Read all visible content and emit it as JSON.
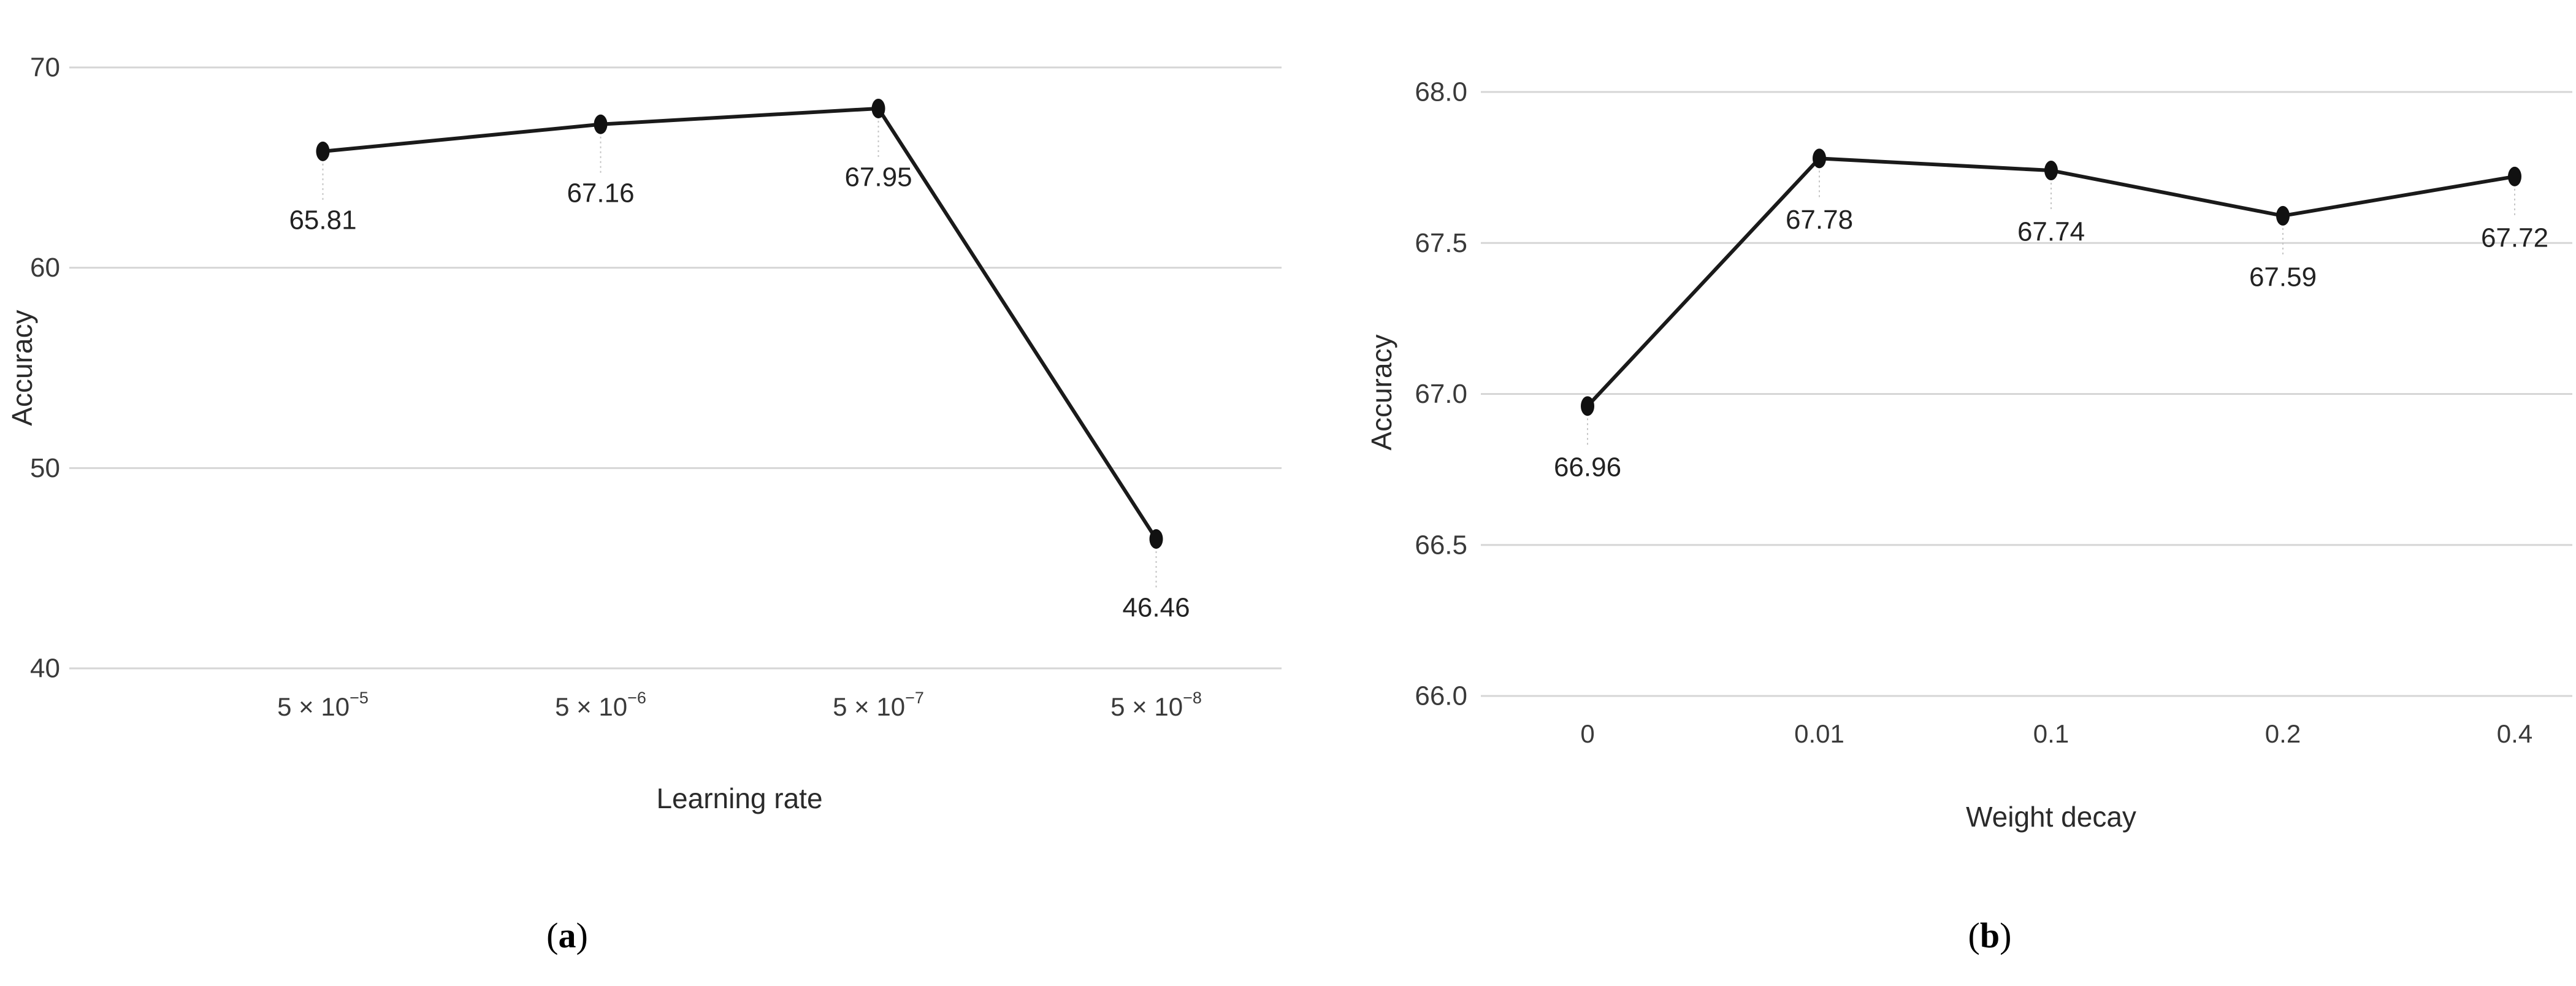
{
  "figure": {
    "description": "Two-panel line figure showing model accuracy versus hyperparameter settings",
    "background": "#ffffff"
  },
  "chart_data": [
    {
      "type": "line",
      "panel": "a",
      "title": "",
      "xlabel": "Learning rate",
      "ylabel": "Accuracy",
      "categories": [
        "5 × 10^−5",
        "5 × 10^−6",
        "5 × 10^−7",
        "5 × 10^−8"
      ],
      "values": [
        65.81,
        67.16,
        67.95,
        46.46
      ],
      "point_labels": [
        "65.81",
        "67.16",
        "67.95",
        "46.46"
      ],
      "y_ticks": [
        70,
        60,
        50,
        40
      ],
      "y_tick_labels": [
        "70",
        "60",
        "50",
        "40"
      ],
      "ylim": [
        40,
        70
      ],
      "grid": "horizontal-only",
      "legend": "none",
      "marker": "filled-dot"
    },
    {
      "type": "line",
      "panel": "b",
      "title": "",
      "xlabel": "Weight decay",
      "ylabel": "Accuracy",
      "categories": [
        "0",
        "0.01",
        "0.1",
        "0.2",
        "0.4"
      ],
      "values": [
        66.96,
        67.78,
        67.74,
        67.59,
        67.72
      ],
      "point_labels": [
        "66.96",
        "67.78",
        "67.74",
        "67.59",
        "67.72"
      ],
      "y_ticks": [
        68.0,
        67.5,
        67.0,
        66.5,
        66.0
      ],
      "y_tick_labels": [
        "68.0",
        "67.5",
        "67.0",
        "66.5",
        "66.0"
      ],
      "ylim": [
        66,
        68
      ],
      "grid": "horizontal-only",
      "legend": "none",
      "marker": "filled-dot"
    }
  ],
  "captions": {
    "a": {
      "open": "(",
      "letter": "a",
      "close": ")"
    },
    "b": {
      "open": "(",
      "letter": "b",
      "close": ")"
    }
  },
  "colors": {
    "line": "#1a1a1a",
    "marker": "#111111",
    "grid": "#d6d6d6",
    "leader": "#c4c4c4",
    "tick_text": "#3a3a3a",
    "label_text": "#222222",
    "axis_title_text": "#2a2a2a",
    "background": "#ffffff"
  }
}
